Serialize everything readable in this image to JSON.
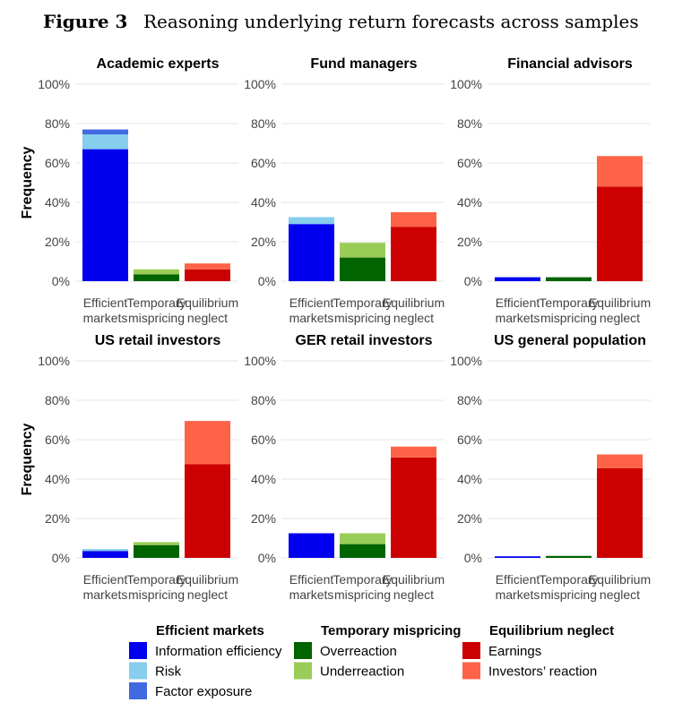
{
  "caption": {
    "label": "Figure 3",
    "text": "Reasoning underlying return forecasts across samples"
  },
  "colors": {
    "Information efficiency": "#0000ee",
    "Risk": "#87cdee",
    "Factor exposure": "#4169e1",
    "Overreaction": "#006400",
    "Underreaction": "#9acd58",
    "Earnings": "#cc0000",
    "Investors’ reaction": "#ff6347"
  },
  "chart_data": [
    {
      "type": "bar",
      "stacked": true,
      "title": "Academic experts",
      "ylabel": "Frequency",
      "ylim": [
        0,
        100
      ],
      "yticks": [
        "0%",
        "20%",
        "40%",
        "60%",
        "80%",
        "100%"
      ],
      "categories": [
        [
          "Efficient",
          "markets"
        ],
        [
          "Temporary",
          "mispricing"
        ],
        [
          "Equilibrium",
          "neglect"
        ]
      ],
      "bars": [
        [
          {
            "group": "Information efficiency",
            "value": 67
          },
          {
            "group": "Risk",
            "value": 7.5
          },
          {
            "group": "Factor exposure",
            "value": 2.5
          }
        ],
        [
          {
            "group": "Overreaction",
            "value": 3.5
          },
          {
            "group": "Underreaction",
            "value": 2.5
          }
        ],
        [
          {
            "group": "Earnings",
            "value": 6
          },
          {
            "group": "Investors’ reaction",
            "value": 3
          }
        ]
      ]
    },
    {
      "type": "bar",
      "stacked": true,
      "title": "Fund managers",
      "ylabel": "",
      "ylim": [
        0,
        100
      ],
      "yticks": [
        "0%",
        "20%",
        "40%",
        "60%",
        "80%",
        "100%"
      ],
      "categories": [
        [
          "Efficient",
          "markets"
        ],
        [
          "Temporary",
          "mispricing"
        ],
        [
          "Equilibrium",
          "neglect"
        ]
      ],
      "bars": [
        [
          {
            "group": "Information efficiency",
            "value": 29
          },
          {
            "group": "Risk",
            "value": 3.5
          }
        ],
        [
          {
            "group": "Overreaction",
            "value": 12
          },
          {
            "group": "Underreaction",
            "value": 7.5
          }
        ],
        [
          {
            "group": "Earnings",
            "value": 27.5
          },
          {
            "group": "Investors’ reaction",
            "value": 7.5
          }
        ]
      ]
    },
    {
      "type": "bar",
      "stacked": true,
      "title": "Financial advisors",
      "ylabel": "",
      "ylim": [
        0,
        100
      ],
      "yticks": [
        "0%",
        "20%",
        "40%",
        "60%",
        "80%",
        "100%"
      ],
      "categories": [
        [
          "Efficient",
          "markets"
        ],
        [
          "Temporary",
          "mispricing"
        ],
        [
          "Equilibrium",
          "neglect"
        ]
      ],
      "bars": [
        [
          {
            "group": "Information efficiency",
            "value": 2
          }
        ],
        [
          {
            "group": "Overreaction",
            "value": 2
          }
        ],
        [
          {
            "group": "Earnings",
            "value": 48
          },
          {
            "group": "Investors’ reaction",
            "value": 15.5
          }
        ]
      ]
    },
    {
      "type": "bar",
      "stacked": true,
      "title": "US retail investors",
      "ylabel": "Frequency",
      "ylim": [
        0,
        100
      ],
      "yticks": [
        "0%",
        "20%",
        "40%",
        "60%",
        "80%",
        "100%"
      ],
      "categories": [
        [
          "Efficient",
          "markets"
        ],
        [
          "Temporary",
          "mispricing"
        ],
        [
          "Equilibrium",
          "neglect"
        ]
      ],
      "bars": [
        [
          {
            "group": "Information efficiency",
            "value": 3.5
          },
          {
            "group": "Risk",
            "value": 1
          }
        ],
        [
          {
            "group": "Overreaction",
            "value": 6.5
          },
          {
            "group": "Underreaction",
            "value": 1.5
          }
        ],
        [
          {
            "group": "Earnings",
            "value": 47.5
          },
          {
            "group": "Investors’ reaction",
            "value": 22
          }
        ]
      ]
    },
    {
      "type": "bar",
      "stacked": true,
      "title": "GER retail investors",
      "ylabel": "",
      "ylim": [
        0,
        100
      ],
      "yticks": [
        "0%",
        "20%",
        "40%",
        "60%",
        "80%",
        "100%"
      ],
      "categories": [
        [
          "Efficient",
          "markets"
        ],
        [
          "Temporary",
          "mispricing"
        ],
        [
          "Equilibrium",
          "neglect"
        ]
      ],
      "bars": [
        [
          {
            "group": "Information efficiency",
            "value": 12.5
          }
        ],
        [
          {
            "group": "Overreaction",
            "value": 7
          },
          {
            "group": "Underreaction",
            "value": 5.5
          }
        ],
        [
          {
            "group": "Earnings",
            "value": 51
          },
          {
            "group": "Investors’ reaction",
            "value": 5.5
          }
        ]
      ]
    },
    {
      "type": "bar",
      "stacked": true,
      "title": "US general population",
      "ylabel": "",
      "ylim": [
        0,
        100
      ],
      "yticks": [
        "0%",
        "20%",
        "40%",
        "60%",
        "80%",
        "100%"
      ],
      "categories": [
        [
          "Efficient",
          "markets"
        ],
        [
          "Temporary",
          "mispricing"
        ],
        [
          "Equilibrium",
          "neglect"
        ]
      ],
      "bars": [
        [
          {
            "group": "Information efficiency",
            "value": 0.8
          }
        ],
        [
          {
            "group": "Overreaction",
            "value": 1
          }
        ],
        [
          {
            "group": "Earnings",
            "value": 45.5
          },
          {
            "group": "Investors’ reaction",
            "value": 7
          }
        ]
      ]
    }
  ],
  "legend": [
    {
      "title": "Efficient markets",
      "items": [
        "Information efficiency",
        "Risk",
        "Factor exposure"
      ]
    },
    {
      "title": "Temporary mispricing",
      "items": [
        "Overreaction",
        "Underreaction"
      ]
    },
    {
      "title": "Equilibrium neglect",
      "items": [
        "Earnings",
        "Investors’ reaction"
      ]
    }
  ]
}
